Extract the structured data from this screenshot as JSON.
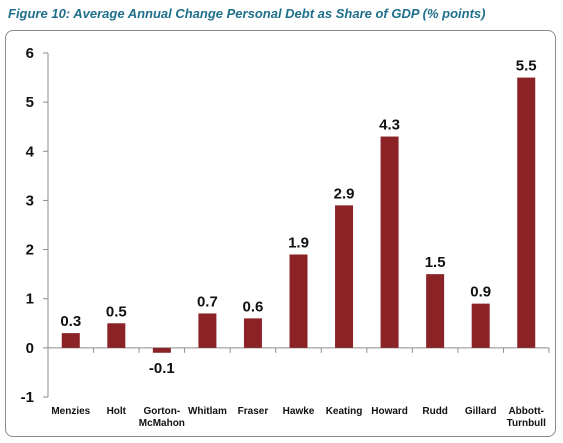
{
  "figure": {
    "title": "Figure 10: Average Annual Change Personal Debt as Share of GDP (% points)"
  },
  "colors": {
    "title": "#1f6f8b",
    "bar": "#8b2326",
    "axis": "#8c8c8c"
  },
  "chart_data": {
    "type": "bar",
    "title": "",
    "xlabel": "",
    "ylabel": "",
    "categories": [
      "Menzies",
      "Holt",
      "Gorton-McMahon",
      "Whitlam",
      "Fraser",
      "Hawke",
      "Keating",
      "Howard",
      "Rudd",
      "Gillard",
      "Abbott-Turnbull"
    ],
    "category_lines": [
      [
        "Menzies"
      ],
      [
        "Holt"
      ],
      [
        "Gorton-",
        "McMahon"
      ],
      [
        "Whitlam"
      ],
      [
        "Fraser"
      ],
      [
        "Hawke"
      ],
      [
        "Keating"
      ],
      [
        "Howard"
      ],
      [
        "Rudd"
      ],
      [
        "Gillard"
      ],
      [
        "Abbott-",
        "Turnbull"
      ]
    ],
    "values": [
      0.3,
      0.5,
      -0.1,
      0.7,
      0.6,
      1.9,
      2.9,
      4.3,
      1.5,
      0.9,
      5.5
    ],
    "data_labels": [
      "0.3",
      "0.5",
      "-0.1",
      "0.7",
      "0.6",
      "1.9",
      "2.9",
      "4.3",
      "1.5",
      "0.9",
      "5.5"
    ],
    "ylim": [
      -1,
      6
    ],
    "yticks": [
      -1,
      0,
      1,
      2,
      3,
      4,
      5,
      6
    ],
    "grid": false,
    "legend": "none"
  }
}
